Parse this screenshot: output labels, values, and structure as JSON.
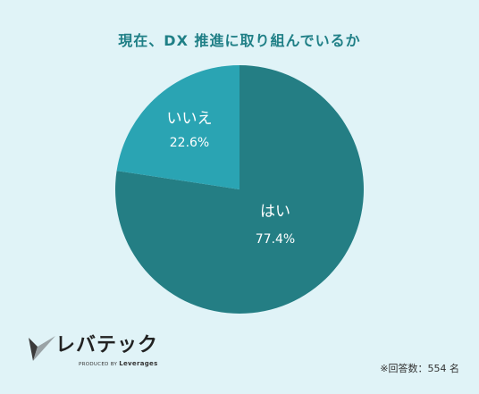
{
  "chart_data": {
    "type": "pie",
    "title": "現在、DX 推進に取り組んでいるか",
    "slices": [
      {
        "label": "はい",
        "value": 77.4,
        "display": "77.4%",
        "color": "#247e84"
      },
      {
        "label": "いいえ",
        "value": 22.6,
        "display": "22.6%",
        "color": "#2aa4b3"
      }
    ],
    "start_angle_deg": 0,
    "direction": "clockwise"
  },
  "logo": {
    "name": "レバテック",
    "sub_prefix": "PRODUCED BY",
    "sub_brand": "Leverages"
  },
  "footnote": "※回答数：554 名"
}
